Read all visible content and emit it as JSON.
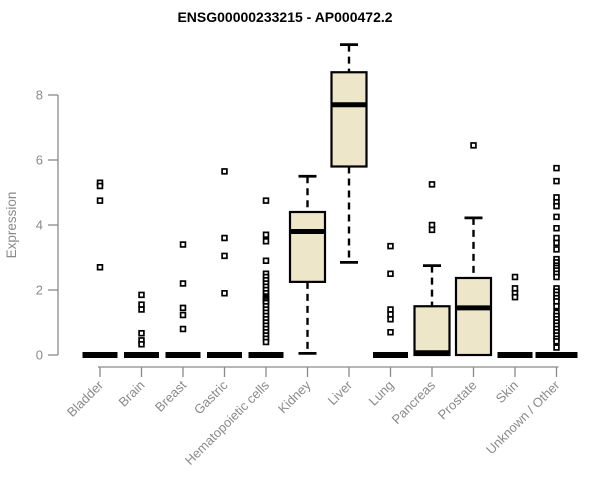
{
  "chart_data": {
    "type": "boxplot",
    "title": "ENSG00000233215 - AP000472.2",
    "ylabel": "Expression",
    "xlabel": "",
    "yticks": [
      0,
      2,
      4,
      6,
      8
    ],
    "ylim": [
      0,
      9.8
    ],
    "grid": false,
    "legend": "none",
    "categories": [
      "Bladder",
      "Brain",
      "Breast",
      "Gastric",
      "Hematopoietic cells",
      "Kidney",
      "Liver",
      "Lung",
      "Pancreas",
      "Prostate",
      "Skin",
      "Unknown / Other"
    ],
    "boxes": [
      {
        "label": "Bladder",
        "q1": 0,
        "median": 0,
        "q3": 0,
        "whisker_low": 0,
        "whisker_high": 0,
        "outliers": [
          5.3,
          5.2,
          4.75,
          2.7
        ]
      },
      {
        "label": "Brain",
        "q1": 0,
        "median": 0,
        "q3": 0,
        "whisker_low": 0,
        "whisker_high": 0,
        "outliers": [
          1.85,
          1.55,
          1.4,
          0.67,
          0.45,
          0.33
        ]
      },
      {
        "label": "Breast",
        "q1": 0,
        "median": 0,
        "q3": 0,
        "whisker_low": 0,
        "whisker_high": 0,
        "outliers": [
          3.4,
          2.2,
          1.45,
          1.23,
          0.8
        ]
      },
      {
        "label": "Gastric",
        "q1": 0,
        "median": 0,
        "q3": 0,
        "whisker_low": 0,
        "whisker_high": 0,
        "outliers": [
          5.65,
          3.6,
          3.05,
          1.9
        ]
      },
      {
        "label": "Hematopoietic cells",
        "q1": 0,
        "median": 0,
        "q3": 0,
        "whisker_low": 0,
        "whisker_high": 0,
        "outliers": [
          4.75,
          3.7,
          3.5,
          2.9,
          2.5,
          2.4,
          2.3,
          2.2,
          2.1,
          2.0,
          1.9,
          1.8,
          1.75,
          1.7,
          1.65,
          1.6,
          1.5,
          1.4,
          1.3,
          1.2,
          1.1,
          1.0,
          0.9,
          0.8,
          0.7,
          0.6,
          0.5,
          0.4
        ]
      },
      {
        "label": "Kidney",
        "q1": 2.25,
        "median": 3.8,
        "q3": 4.4,
        "whisker_low": 0.05,
        "whisker_high": 5.5,
        "outliers": []
      },
      {
        "label": "Liver",
        "q1": 5.8,
        "median": 7.7,
        "q3": 8.7,
        "whisker_low": 2.85,
        "whisker_high": 9.55,
        "outliers": []
      },
      {
        "label": "Lung",
        "q1": 0,
        "median": 0,
        "q3": 0,
        "whisker_low": 0,
        "whisker_high": 0,
        "outliers": [
          3.35,
          2.5,
          1.4,
          1.25,
          1.1,
          0.7
        ]
      },
      {
        "label": "Pancreas",
        "q1": 0,
        "median": 0.07,
        "q3": 1.5,
        "whisker_low": 0,
        "whisker_high": 2.75,
        "outliers": [
          5.25,
          4.0,
          3.85
        ]
      },
      {
        "label": "Prostate",
        "q1": 0,
        "median": 1.45,
        "q3": 2.37,
        "whisker_low": 0,
        "whisker_high": 4.22,
        "outliers": [
          6.45
        ]
      },
      {
        "label": "Skin",
        "q1": 0,
        "median": 0,
        "q3": 0,
        "whisker_low": 0,
        "whisker_high": 0,
        "outliers": [
          2.4,
          2.05,
          1.9,
          1.78
        ]
      },
      {
        "label": "Unknown / Other",
        "q1": 0,
        "median": 0,
        "q3": 0,
        "whisker_low": 0,
        "whisker_high": 0,
        "outliers": [
          5.75,
          5.35,
          4.85,
          4.7,
          4.58,
          4.25,
          3.9,
          3.6,
          3.45,
          3.25,
          2.95,
          2.85,
          2.75,
          2.68,
          2.6,
          2.5,
          2.4,
          2.05,
          1.95,
          1.85,
          1.75,
          1.65,
          1.5,
          1.3,
          1.2,
          1.1,
          1.0,
          0.9,
          0.8,
          0.7,
          0.6,
          0.5,
          0.42,
          0.23
        ]
      }
    ],
    "colors": {
      "box_fill": "#EDE6C9",
      "box_border": "#000000",
      "median": "#000000",
      "whisker": "#000000",
      "outlier_fill": "#FFFFFF",
      "axis": "#8A8A8A",
      "title": "#000000",
      "background": "#FFFFFF"
    }
  }
}
